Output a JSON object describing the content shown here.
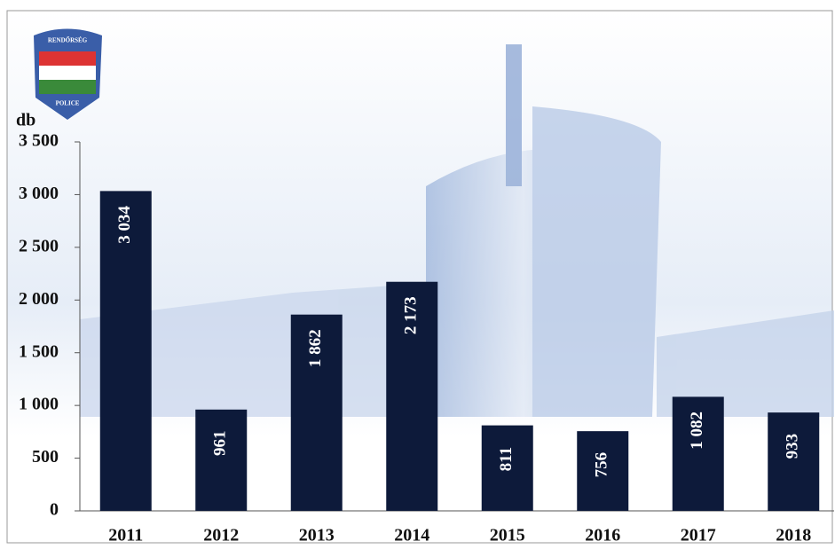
{
  "logo": {
    "top": "RENDŐRSÉG",
    "bottom": "POLICE"
  },
  "chart_data": {
    "type": "bar",
    "y_label": "db",
    "categories": [
      "2011",
      "2012",
      "2013",
      "2014",
      "2015",
      "2016",
      "2017",
      "2018"
    ],
    "values": [
      3034,
      961,
      1862,
      2173,
      811,
      756,
      1082,
      933
    ],
    "value_labels": [
      "3 034",
      "961",
      "1 862",
      "2 173",
      "811",
      "756",
      "1 082",
      "933"
    ],
    "color": "#0d1a3a",
    "ylim": [
      0,
      3500
    ],
    "yticks": [
      0,
      500,
      {
        "value": 1000,
        "label": "1 000"
      },
      {
        "value": 1500,
        "label": "1 500"
      },
      {
        "value": 2000,
        "label": "2 000"
      },
      {
        "value": 2500,
        "label": "2 500"
      },
      {
        "value": 3000,
        "label": "3 000"
      },
      {
        "value": 3500,
        "label": "3 500"
      }
    ]
  }
}
